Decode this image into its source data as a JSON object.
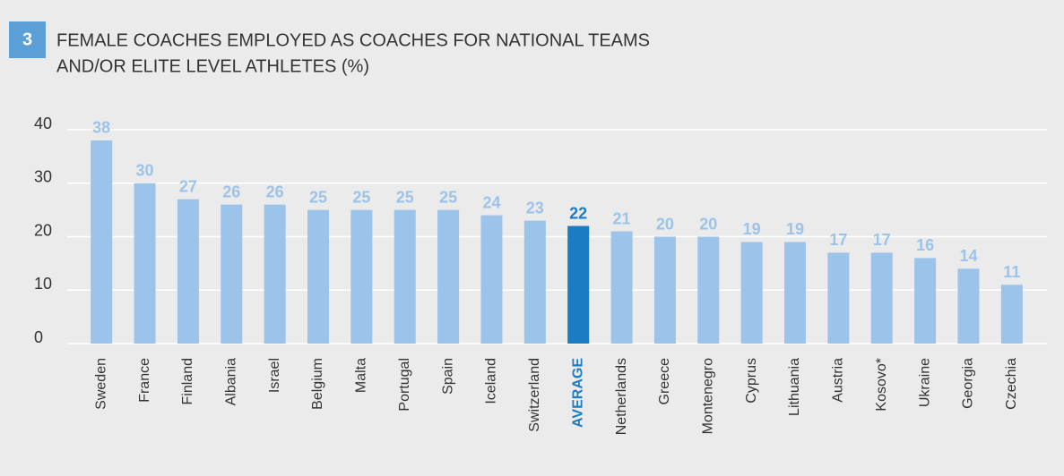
{
  "chart_data": {
    "type": "bar",
    "figure_number": "3",
    "title": [
      "FEMALE COACHES EMPLOYED AS COACHES FOR NATIONAL TEAMS",
      "AND/OR ELITE LEVEL ATHLETES (%)"
    ],
    "categories": [
      "Sweden",
      "France",
      "Finland",
      "Albania",
      "Israel",
      "Belgium",
      "Malta",
      "Portugal",
      "Spain",
      "Iceland",
      "Switzerland",
      "AVERAGE",
      "Netherlands",
      "Greece",
      "Montenegro",
      "Cyprus",
      "Lithuania",
      "Austria",
      "Kosovo*",
      "Ukraine",
      "Georgia",
      "Czechia"
    ],
    "values": [
      38,
      30,
      27,
      26,
      26,
      25,
      25,
      25,
      25,
      24,
      23,
      22,
      21,
      20,
      20,
      19,
      19,
      17,
      17,
      16,
      14,
      11
    ],
    "colors": [
      "#9cc3ea",
      "#9cc3ea",
      "#9cc3ea",
      "#9cc3ea",
      "#9cc3ea",
      "#9cc3ea",
      "#9cc3ea",
      "#9cc3ea",
      "#9cc3ea",
      "#9cc3ea",
      "#9cc3ea",
      "#1b7cc3",
      "#9cc3ea",
      "#9cc3ea",
      "#9cc3ea",
      "#9cc3ea",
      "#9cc3ea",
      "#9cc3ea",
      "#9cc3ea",
      "#9cc3ea",
      "#9cc3ea",
      "#9cc3ea"
    ],
    "ylim": [
      0,
      40
    ],
    "yticks": [
      0,
      10,
      20,
      30,
      40
    ],
    "grid": true
  }
}
